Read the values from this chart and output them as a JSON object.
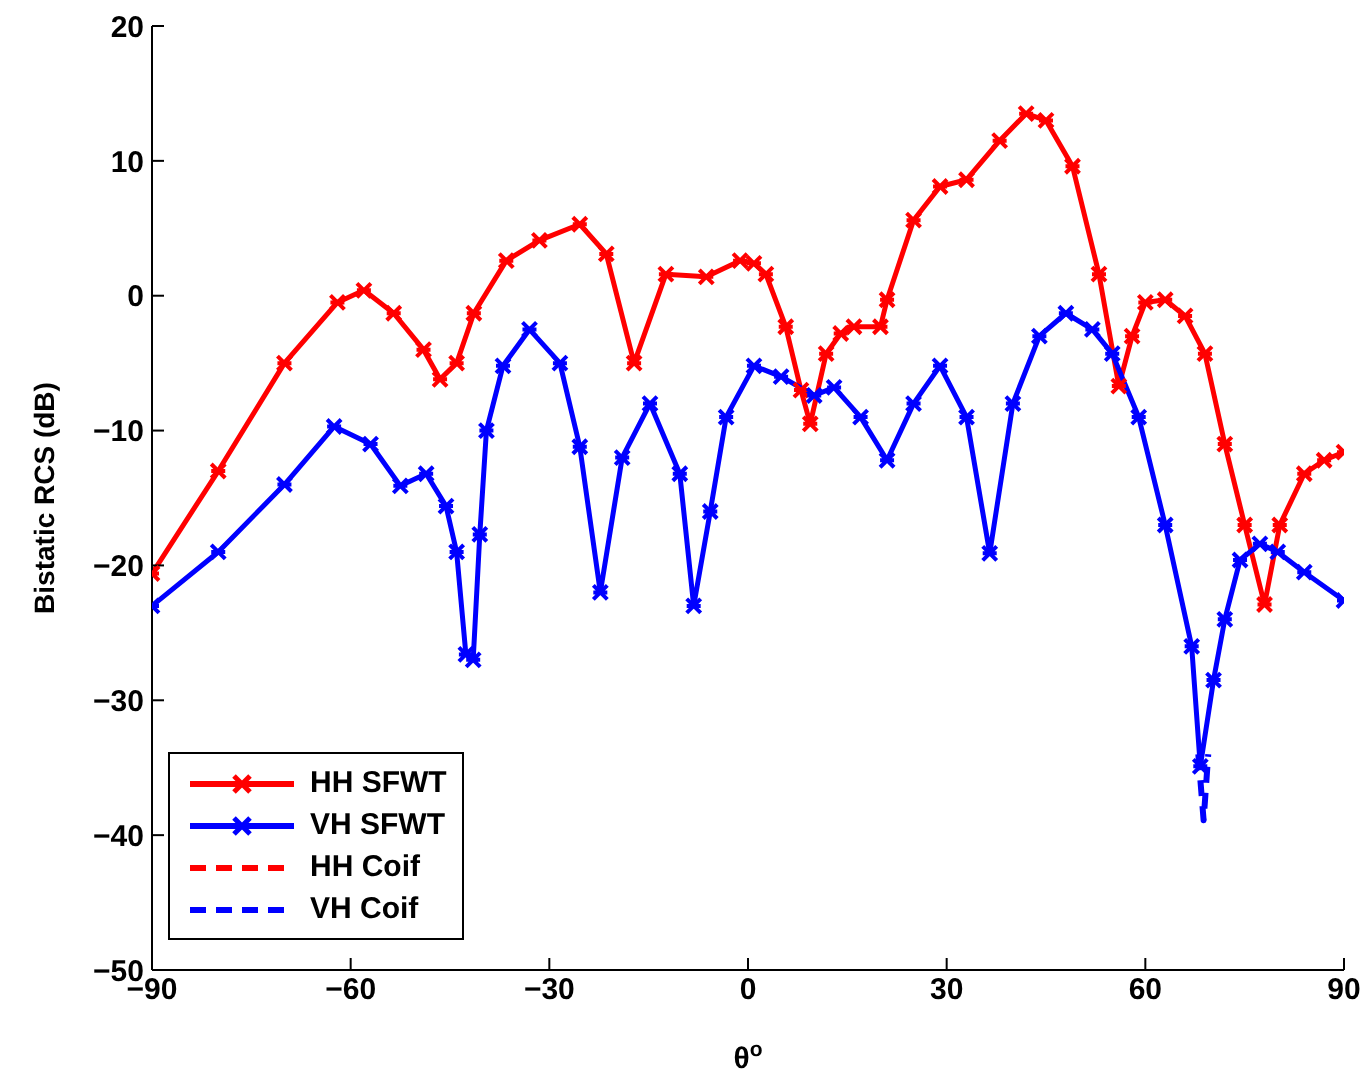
{
  "chart_data": {
    "type": "line",
    "xlabel": "θ$^{o}$",
    "ylabel": "Bistatic RCS (dB)",
    "xlim": [
      -90,
      90
    ],
    "xticks": [
      -90,
      -60,
      -30,
      0,
      30,
      60,
      90
    ],
    "ylim": [
      -50,
      20
    ],
    "yticks": [
      -50,
      -40,
      -30,
      -20,
      -10,
      0,
      10,
      20
    ],
    "grid": false,
    "legend": "bottom left",
    "series": [
      {
        "name": "HH SFWT",
        "color": "#ff0000",
        "marker": "cross",
        "line_style": "solid",
        "x": [
          -90,
          -80,
          -70,
          -62,
          -58,
          -53.5,
          -49,
          -46.5,
          -44,
          -41.4,
          -36.5,
          -31.5,
          -25.4,
          -21.4,
          -17.2,
          -12.4,
          -6.3,
          -1.2,
          0.9,
          2.7,
          5.7,
          8,
          9.4,
          11.8,
          14,
          16,
          20,
          21,
          25,
          29,
          33,
          38,
          42,
          45,
          49,
          53,
          56,
          58,
          60,
          63,
          66,
          69,
          72,
          75,
          78,
          80.3,
          84,
          87,
          90
        ],
        "values": [
          -20.6,
          -13,
          -5,
          -0.5,
          0.4,
          -1.3,
          -4,
          -6.2,
          -5,
          -1.3,
          2.6,
          4.1,
          5.3,
          3.1,
          -5,
          1.6,
          1.4,
          2.6,
          2.4,
          1.6,
          -2.3,
          -7,
          -9.5,
          -4.3,
          -2.8,
          -2.3,
          -2.3,
          -0.3,
          5.6,
          8.1,
          8.6,
          11.5,
          13.5,
          13,
          9.6,
          1.6,
          -6.7,
          -3,
          -0.5,
          -0.3,
          -1.5,
          -4.3,
          -11,
          -17,
          -22.9,
          -17,
          -13.2,
          -12.2,
          -11.6
        ]
      },
      {
        "name": "VH SFWT",
        "color": "#0000ff",
        "marker": "cross",
        "line_style": "solid",
        "x": [
          -90,
          -80,
          -70,
          -62.5,
          -57,
          -52.5,
          -48.6,
          -45.6,
          -44,
          -42.6,
          -41.5,
          -40.5,
          -39.5,
          -37,
          -33,
          -28.4,
          -25.4,
          -22.3,
          -19,
          -14.8,
          -10.3,
          -8.2,
          -5.7,
          -3.3,
          0.9,
          5,
          10,
          13,
          17,
          21,
          25,
          29,
          33,
          36.5,
          40,
          44,
          48,
          52,
          55,
          59,
          63,
          67,
          68.3,
          70.3,
          72,
          74.3,
          77.3,
          80,
          84,
          90
        ],
        "values": [
          -23,
          -19,
          -14,
          -9.7,
          -11,
          -14.1,
          -13.2,
          -15.6,
          -19,
          -26.6,
          -27,
          -17.7,
          -10,
          -5.2,
          -2.5,
          -5,
          -11.2,
          -22,
          -12,
          -8,
          -13.2,
          -23,
          -16,
          -9,
          -5.2,
          -6,
          -7.4,
          -6.8,
          -9,
          -12.2,
          -8,
          -5.2,
          -9,
          -19.1,
          -8,
          -3,
          -1.3,
          -2.5,
          -4.3,
          -9,
          -17,
          -26,
          -34.9,
          -28.5,
          -24,
          -19.6,
          -18.4,
          -19,
          -20.5,
          -22.6
        ]
      },
      {
        "name": "HH Coif",
        "color": "#ff0000",
        "marker": "none",
        "line_style": "dashed"
      },
      {
        "name": "VH Coif",
        "color": "#0000ff",
        "marker": "none",
        "line_style": "dashed",
        "x": [
          68,
          68.8,
          69.5
        ],
        "values": [
          -34,
          -38.9,
          -34
        ]
      }
    ]
  }
}
